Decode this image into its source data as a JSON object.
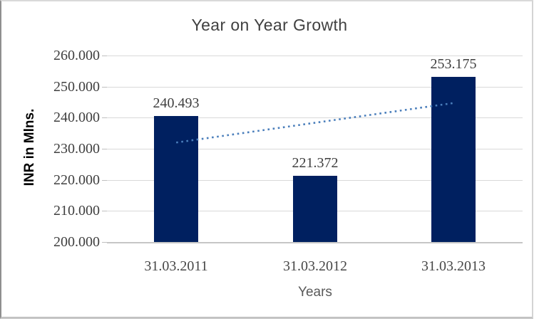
{
  "chart_data": {
    "type": "bar",
    "title": "Year on Year Growth",
    "xlabel": "Years",
    "ylabel": "INR in Mlns.",
    "categories": [
      "31.03.2011",
      "31.03.2012",
      "31.03.2013"
    ],
    "series": [
      {
        "name": "INR in Mlns.",
        "values": [
          240.493,
          221.372,
          253.175
        ]
      }
    ],
    "data_labels": [
      "240.493",
      "221.372",
      "253.175"
    ],
    "y_axis": {
      "min": 200,
      "max": 260,
      "tick_interval": 10,
      "tick_values": [
        260,
        250,
        240,
        230,
        220,
        210,
        200
      ],
      "tick_labels": [
        "260.000",
        "250.000",
        "240.000",
        "230.000",
        "220.000",
        "210.000",
        "200.000"
      ]
    },
    "trendline": {
      "style": "dotted",
      "color": "#4a7ebb",
      "start_value": 232.0,
      "end_value": 244.7
    },
    "grid": true,
    "legend": false,
    "colors": {
      "bar": "#002060",
      "gridline": "#d9d9d9",
      "axis_line": "#c6c6c6",
      "title_text": "#404040",
      "tick_text": "#3f3f3f",
      "axis_title_text": "#595959",
      "y_axis_title_text": "#000000"
    }
  }
}
